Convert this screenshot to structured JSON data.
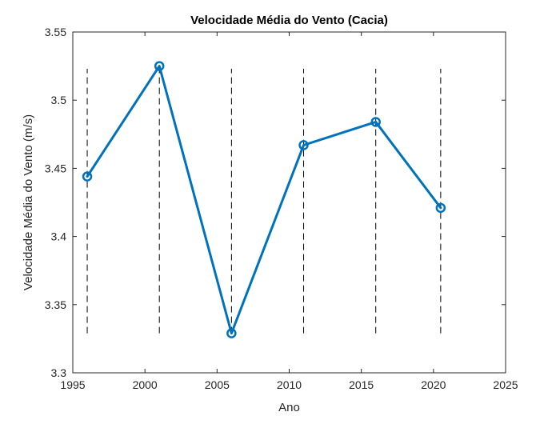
{
  "chart_data": {
    "type": "line",
    "title": "Velocidade Média do Vento (Cacia)",
    "xlabel": "Ano",
    "ylabel": "Velocidade Média do Vento (m/s)",
    "xlim": [
      1995,
      2025
    ],
    "ylim": [
      3.3,
      3.55
    ],
    "xticks": [
      "1995",
      "2000",
      "2005",
      "2010",
      "2015",
      "2020",
      "2025"
    ],
    "yticks": [
      "3.3",
      "3.35",
      "3.4",
      "3.45",
      "3.5",
      "3.55"
    ],
    "grid": false,
    "series": [
      {
        "x": [
          1996,
          2001,
          2006,
          2011,
          2016,
          2020.5
        ],
        "values": [
          3.444,
          3.525,
          3.329,
          3.467,
          3.484,
          3.421
        ],
        "color": "#0072BD",
        "marker": "circle"
      }
    ],
    "vertical_lines": {
      "x": [
        1996,
        2001,
        2006,
        2011,
        2016,
        2020.5
      ],
      "y_range": [
        3.329,
        3.523
      ],
      "style": "dashed",
      "color": "#000000"
    }
  }
}
